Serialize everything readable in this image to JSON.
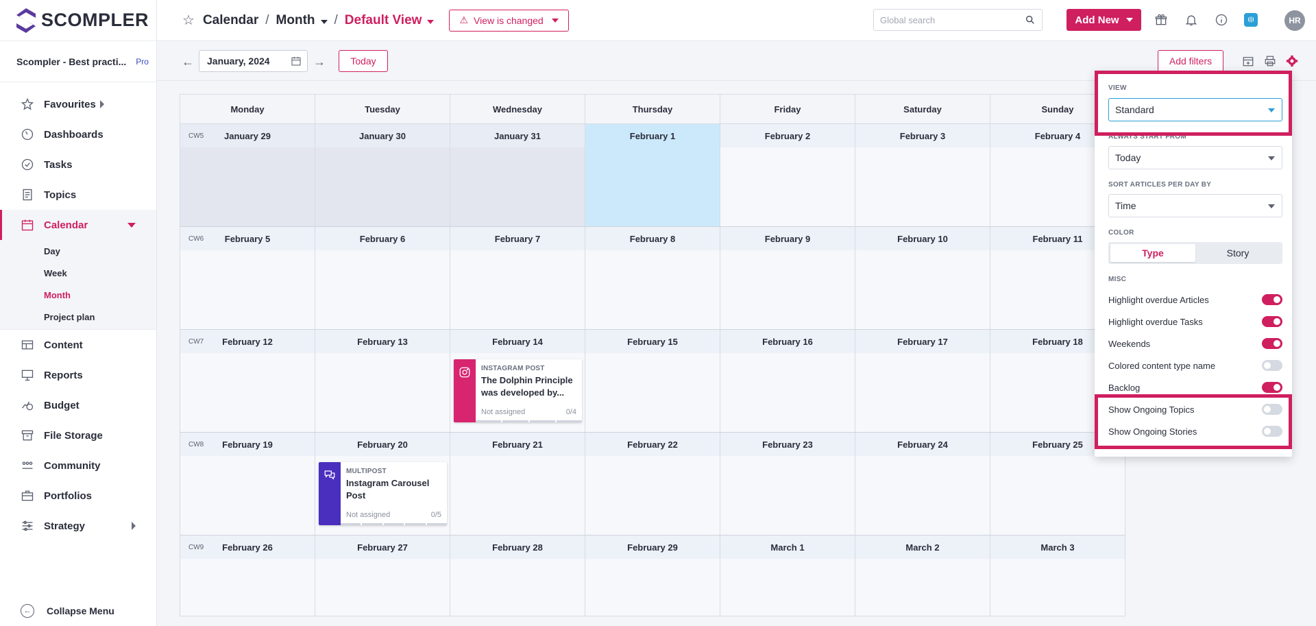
{
  "app": {
    "logo_text": "SCOMPLER",
    "workspace": "Scompler - Best practi...",
    "plan_badge": "Pro"
  },
  "sidebar": {
    "items": [
      {
        "label": "Favourites",
        "icon": "star-icon"
      },
      {
        "label": "Dashboards",
        "icon": "gauge-icon"
      },
      {
        "label": "Tasks",
        "icon": "check-circle-icon"
      },
      {
        "label": "Topics",
        "icon": "document-icon"
      },
      {
        "label": "Calendar",
        "icon": "calendar-icon"
      },
      {
        "label": "Content",
        "icon": "table-icon"
      },
      {
        "label": "Reports",
        "icon": "presentation-icon"
      },
      {
        "label": "Budget",
        "icon": "coins-icon"
      },
      {
        "label": "File Storage",
        "icon": "archive-icon"
      },
      {
        "label": "Community",
        "icon": "people-icon"
      },
      {
        "label": "Portfolios",
        "icon": "briefcase-icon"
      },
      {
        "label": "Strategy",
        "icon": "sliders-icon"
      }
    ],
    "calendar_sub": [
      "Day",
      "Week",
      "Month",
      "Project plan"
    ],
    "collapse_label": "Collapse Menu"
  },
  "header": {
    "breadcrumb": [
      "Calendar",
      "Month",
      "Default View"
    ],
    "view_changed": "View is changed",
    "search_placeholder": "Global search",
    "add_new": "Add New",
    "avatar": "HR"
  },
  "toolbar": {
    "date": "January, 2024",
    "today": "Today",
    "add_filters": "Add filters"
  },
  "calendar": {
    "weekdays": [
      "Monday",
      "Tuesday",
      "Wednesday",
      "Thursday",
      "Friday",
      "Saturday",
      "Sunday"
    ],
    "weeks": [
      {
        "cw": "CW5",
        "days": [
          "January 29",
          "January 30",
          "January 31",
          "February 1",
          "February 2",
          "February 3",
          "February 4"
        ]
      },
      {
        "cw": "CW6",
        "days": [
          "February 5",
          "February 6",
          "February 7",
          "February 8",
          "February 9",
          "February 10",
          "February 11"
        ]
      },
      {
        "cw": "CW7",
        "days": [
          "February 12",
          "February 13",
          "February 14",
          "February 15",
          "February 16",
          "February 17",
          "February 18"
        ]
      },
      {
        "cw": "CW8",
        "days": [
          "February 19",
          "February 20",
          "February 21",
          "February 22",
          "February 23",
          "February 24",
          "February 25"
        ]
      },
      {
        "cw": "CW9",
        "days": [
          "February 26",
          "February 27",
          "February 28",
          "February 29",
          "March 1",
          "March 2",
          "March 3"
        ]
      }
    ],
    "cards": [
      {
        "type": "INSTAGRAM POST",
        "title_l1": "The Dolphin Principle",
        "title_l2": "was developed by...",
        "assignee": "Not assigned",
        "progress": "0/4"
      },
      {
        "type": "MULTIPOST",
        "title_l1": "Instagram Carousel",
        "title_l2": "Post",
        "assignee": "Not assigned",
        "progress": "0/5"
      }
    ]
  },
  "settings_panel": {
    "view_label": "VIEW",
    "view_value": "Standard",
    "start_label": "ALWAYS START FROM",
    "start_value": "Today",
    "sort_label": "SORT ARTICLES PER DAY BY",
    "sort_value": "Time",
    "color_label": "COLOR",
    "color_options": [
      "Type",
      "Story"
    ],
    "color_selected": "Type",
    "misc_label": "MISC",
    "toggles": [
      {
        "label": "Highlight overdue Articles",
        "on": true
      },
      {
        "label": "Highlight overdue Tasks",
        "on": true
      },
      {
        "label": "Weekends",
        "on": true
      },
      {
        "label": "Colored content type name",
        "on": false
      },
      {
        "label": "Backlog",
        "on": true
      },
      {
        "label": "Show Ongoing Topics",
        "on": false
      },
      {
        "label": "Show Ongoing Stories",
        "on": false
      }
    ]
  },
  "colors": {
    "accent": "#cf1f5f",
    "today": "#cce9fb",
    "instagram": "#d7256f",
    "multipost": "#4a2fbf"
  }
}
